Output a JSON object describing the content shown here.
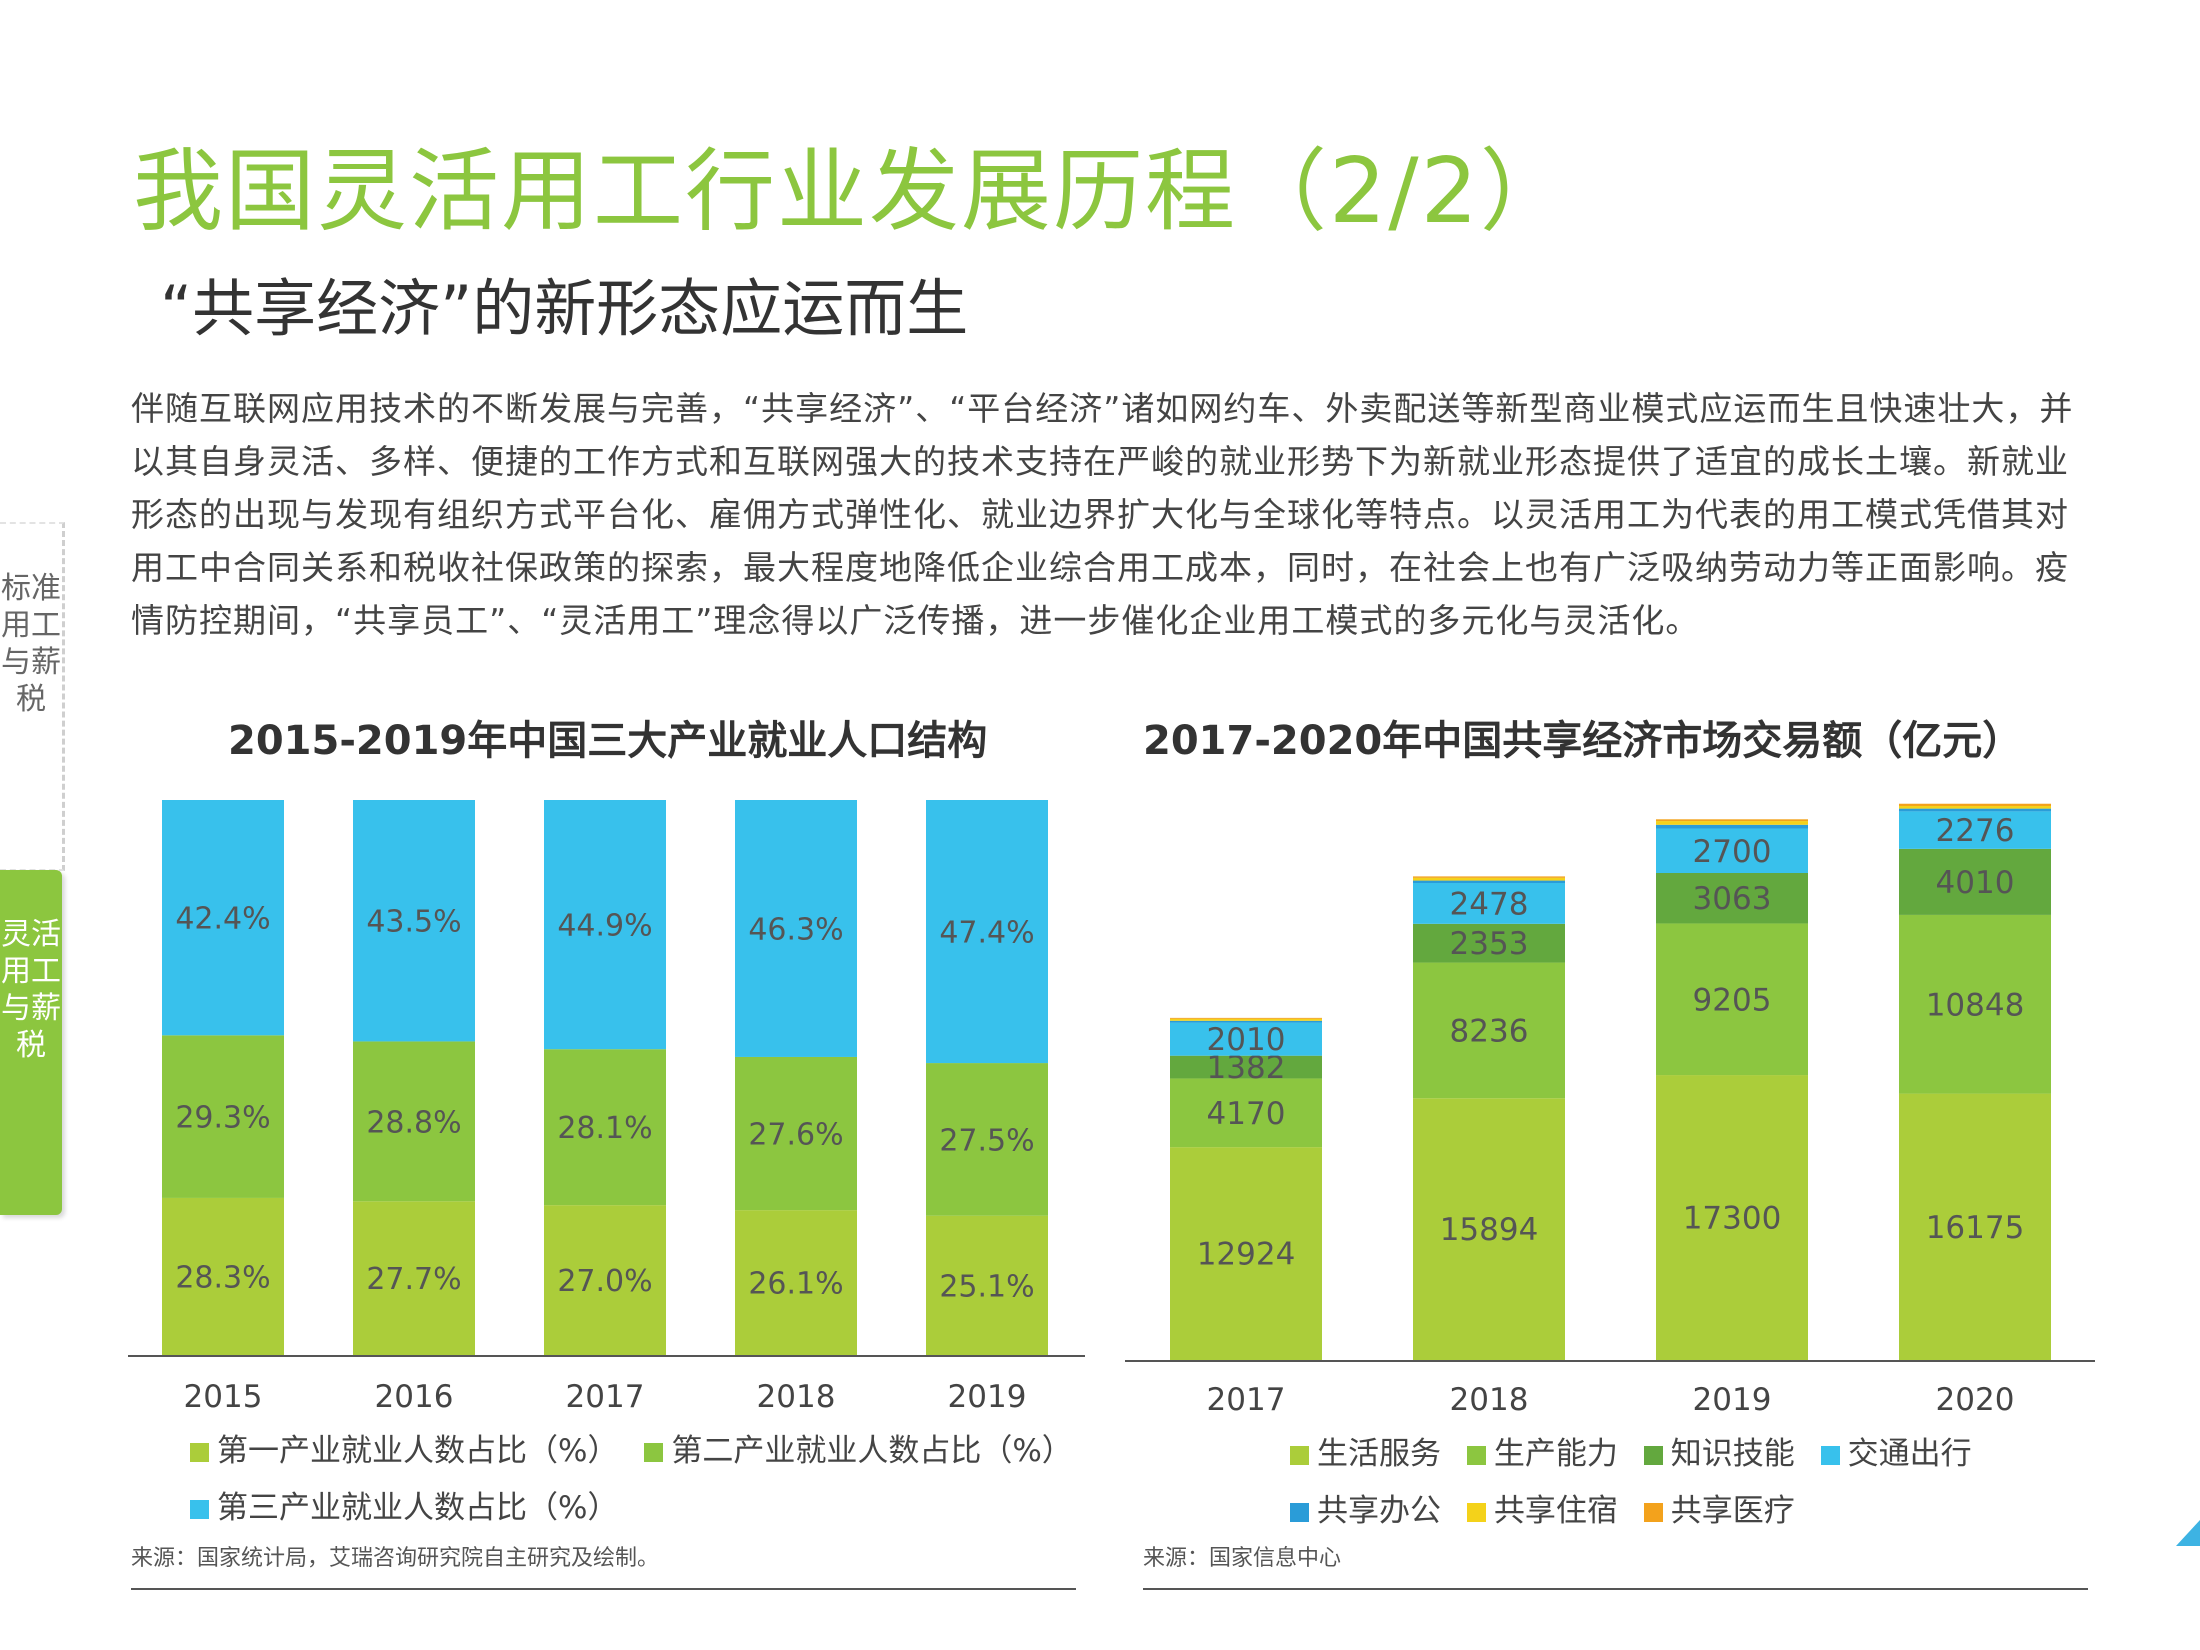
{
  "title": "我国灵活用工行业发展历程（2/2）",
  "subtitle": "“共享经济”的新形态应运而生",
  "body": "伴随互联网应用技术的不断发展与完善，“共享经济”、“平台经济”诸如网约车、外卖配送等新型商业模式应运而生且快速壮大，并以其自身灵活、多样、便捷的工作方式和互联网强大的技术支持在严峻的就业形势下为新就业形态提供了适宜的成长土壤。新就业形态的出现与发现有组织方式平台化、雇佣方式弹性化、就业边界扩大化与全球化等特点。以灵活用工为代表的用工模式凭借其对用工中合同关系和税收社保政策的探索，最大程度地降低企业综合用工成本，同时，在社会上也有广泛吸纳劳动力等正面影响。疫情防控期间，“共享员工”、“灵活用工”理念得以广泛传播，进一步催化企业用工模式的多元化与灵活化。",
  "side_tabs": [
    "标准用工与薪税",
    "灵活用工与薪税"
  ],
  "chart_data": [
    {
      "type": "bar",
      "stacked": true,
      "title": "2015-2019年中国三大产业就业人口结构",
      "categories": [
        "2015",
        "2016",
        "2017",
        "2018",
        "2019"
      ],
      "series": [
        {
          "name": "第一产业就业人数占比（%）",
          "values": [
            28.3,
            27.7,
            27.0,
            26.1,
            25.1
          ],
          "labels": [
            "28.3%",
            "27.7%",
            "27.0%",
            "26.1%",
            "25.1%"
          ],
          "color": "#abcd3a"
        },
        {
          "name": "第二产业就业人数占比（%）",
          "values": [
            29.3,
            28.8,
            28.1,
            27.6,
            27.5
          ],
          "labels": [
            "29.3%",
            "28.8%",
            "28.1%",
            "27.6%",
            "27.5%"
          ],
          "color": "#8cc640"
        },
        {
          "name": "第三产业就业人数占比（%）",
          "values": [
            42.4,
            43.5,
            44.9,
            46.3,
            47.4
          ],
          "labels": [
            "42.4%",
            "43.5%",
            "44.9%",
            "46.3%",
            "47.4%"
          ],
          "color": "#38c1ec"
        }
      ],
      "ylim": [
        0,
        100
      ],
      "source": "来源：国家统计局，艾瑞咨询研究院自主研究及绘制。"
    },
    {
      "type": "bar",
      "stacked": true,
      "title": "2017-2020年中国共享经济市场交易额（亿元）",
      "categories": [
        "2017",
        "2018",
        "2019",
        "2020"
      ],
      "series": [
        {
          "name": "生活服务",
          "values": [
            12924,
            15894,
            17300,
            16175
          ],
          "color": "#abcd3a",
          "labeled": true
        },
        {
          "name": "生产能力",
          "values": [
            4170,
            8236,
            9205,
            10848
          ],
          "color": "#8cc640",
          "labeled": true
        },
        {
          "name": "知识技能",
          "values": [
            1382,
            2353,
            3063,
            4010
          ],
          "color": "#63a83e",
          "labeled": true
        },
        {
          "name": "交通出行",
          "values": [
            2010,
            2478,
            2700,
            2276
          ],
          "color": "#38c1ec",
          "labeled": true
        },
        {
          "name": "共享办公",
          "values": [
            110,
            147,
            227,
            168
          ],
          "color": "#2a9cd8",
          "labeled": false
        },
        {
          "name": "共享住宿",
          "values": [
            120,
            165,
            225,
            158
          ],
          "color": "#f4d21a",
          "labeled": false
        },
        {
          "name": "共享医疗",
          "values": [
            56,
            88,
            108,
            138
          ],
          "color": "#f3a21c",
          "labeled": false
        }
      ],
      "ylim": [
        0,
        34000
      ],
      "source": "来源：国家信息中心"
    }
  ]
}
